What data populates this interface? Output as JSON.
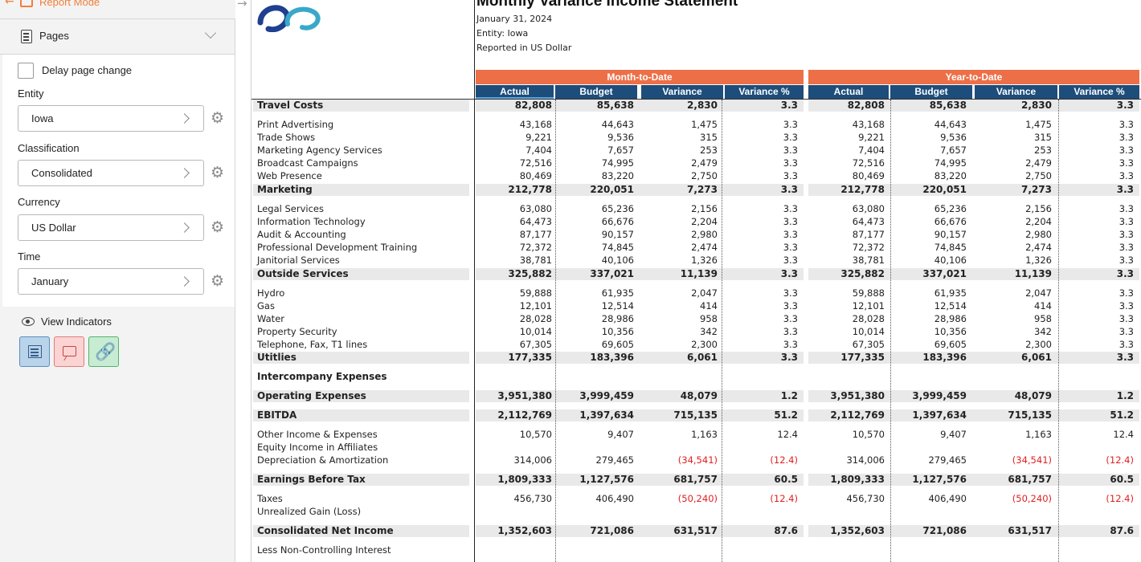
{
  "topbar": {
    "report_mode_label": "Report Mode"
  },
  "sidebar": {
    "pages_label": "Pages",
    "delay_label": "Delay page change",
    "entity": {
      "label": "Entity",
      "value": "Iowa"
    },
    "classification": {
      "label": "Classification",
      "value": "Consolidated"
    },
    "currency": {
      "label": "Currency",
      "value": "US Dollar"
    },
    "time": {
      "label": "Time",
      "value": "January"
    },
    "view_indicators_label": "View Indicators"
  },
  "report": {
    "title": "Monthly Variance Income Statement",
    "date": "January 31, 2024",
    "entity_line": "Entity: Iowa",
    "currency_line": "Reported in US Dollar",
    "groups": [
      "Month-to-Date",
      "Year-to-Date"
    ],
    "columns": [
      "Actual",
      "Budget",
      "Variance",
      "Variance %",
      "Actual",
      "Budget",
      "Variance",
      "Variance %"
    ],
    "rows": [
      {
        "label": "Travel Costs",
        "bold": true,
        "values": [
          "82,808",
          "85,638",
          "2,830",
          "3.3",
          "82,808",
          "85,638",
          "2,830",
          "3.3"
        ]
      },
      {
        "label": "Print Advertising",
        "values": [
          "43,168",
          "44,643",
          "1,475",
          "3.3",
          "43,168",
          "44,643",
          "1,475",
          "3.3"
        ]
      },
      {
        "label": "Trade Shows",
        "values": [
          "9,221",
          "9,536",
          "315",
          "3.3",
          "9,221",
          "9,536",
          "315",
          "3.3"
        ]
      },
      {
        "label": "Marketing Agency Services",
        "values": [
          "7,404",
          "7,657",
          "253",
          "3.3",
          "7,404",
          "7,657",
          "253",
          "3.3"
        ]
      },
      {
        "label": "Broadcast Campaigns",
        "values": [
          "72,516",
          "74,995",
          "2,479",
          "3.3",
          "72,516",
          "74,995",
          "2,479",
          "3.3"
        ]
      },
      {
        "label": "Web Presence",
        "values": [
          "80,469",
          "83,220",
          "2,750",
          "3.3",
          "80,469",
          "83,220",
          "2,750",
          "3.3"
        ]
      },
      {
        "label": "Marketing",
        "bold": true,
        "values": [
          "212,778",
          "220,051",
          "7,273",
          "3.3",
          "212,778",
          "220,051",
          "7,273",
          "3.3"
        ]
      },
      {
        "label": "Legal Services",
        "values": [
          "63,080",
          "65,236",
          "2,156",
          "3.3",
          "63,080",
          "65,236",
          "2,156",
          "3.3"
        ]
      },
      {
        "label": "Information Technology",
        "values": [
          "64,473",
          "66,676",
          "2,204",
          "3.3",
          "64,473",
          "66,676",
          "2,204",
          "3.3"
        ]
      },
      {
        "label": "Audit & Accounting",
        "values": [
          "87,177",
          "90,157",
          "2,980",
          "3.3",
          "87,177",
          "90,157",
          "2,980",
          "3.3"
        ]
      },
      {
        "label": "Professional Development Training",
        "values": [
          "72,372",
          "74,845",
          "2,474",
          "3.3",
          "72,372",
          "74,845",
          "2,474",
          "3.3"
        ]
      },
      {
        "label": "Janitorial Services",
        "values": [
          "38,781",
          "40,106",
          "1,326",
          "3.3",
          "38,781",
          "40,106",
          "1,326",
          "3.3"
        ]
      },
      {
        "label": "Outside Services",
        "bold": true,
        "values": [
          "325,882",
          "337,021",
          "11,139",
          "3.3",
          "325,882",
          "337,021",
          "11,139",
          "3.3"
        ]
      },
      {
        "label": "Hydro",
        "values": [
          "59,888",
          "61,935",
          "2,047",
          "3.3",
          "59,888",
          "61,935",
          "2,047",
          "3.3"
        ]
      },
      {
        "label": "Gas",
        "values": [
          "12,101",
          "12,514",
          "414",
          "3.3",
          "12,101",
          "12,514",
          "414",
          "3.3"
        ]
      },
      {
        "label": "Water",
        "values": [
          "28,028",
          "28,986",
          "958",
          "3.3",
          "28,028",
          "28,986",
          "958",
          "3.3"
        ]
      },
      {
        "label": "Property Security",
        "values": [
          "10,014",
          "10,356",
          "342",
          "3.3",
          "10,014",
          "10,356",
          "342",
          "3.3"
        ]
      },
      {
        "label": "Telephone, Fax, T1 lines",
        "values": [
          "67,305",
          "69,605",
          "2,300",
          "3.3",
          "67,305",
          "69,605",
          "2,300",
          "3.3"
        ]
      },
      {
        "label": "Utitlies",
        "bold": true,
        "values": [
          "177,335",
          "183,396",
          "6,061",
          "3.3",
          "177,335",
          "183,396",
          "6,061",
          "3.3"
        ]
      },
      {
        "label": "Intercompany Expenses",
        "bold": true,
        "values": [
          "",
          "",
          "",
          "",
          "",
          "",
          "",
          ""
        ]
      },
      {
        "label": "Operating Expenses",
        "bold": true,
        "values": [
          "3,951,380",
          "3,999,459",
          "48,079",
          "1.2",
          "3,951,380",
          "3,999,459",
          "48,079",
          "1.2"
        ]
      },
      {
        "label": "EBITDA",
        "bold": true,
        "values": [
          "2,112,769",
          "1,397,634",
          "715,135",
          "51.2",
          "2,112,769",
          "1,397,634",
          "715,135",
          "51.2"
        ]
      },
      {
        "label": "Other Income & Expenses",
        "values": [
          "10,570",
          "9,407",
          "1,163",
          "12.4",
          "10,570",
          "9,407",
          "1,163",
          "12.4"
        ]
      },
      {
        "label": "Equity Income in Affiliates",
        "values": [
          "",
          "",
          "",
          "",
          "",
          "",
          "",
          ""
        ]
      },
      {
        "label": "Depreciation & Amortization",
        "values": [
          "314,006",
          "279,465",
          "(34,541)",
          "(12.4)",
          "314,006",
          "279,465",
          "(34,541)",
          "(12.4)"
        ]
      },
      {
        "label": "Earnings Before Tax",
        "bold": true,
        "values": [
          "1,809,333",
          "1,127,576",
          "681,757",
          "60.5",
          "1,809,333",
          "1,127,576",
          "681,757",
          "60.5"
        ]
      },
      {
        "label": "Taxes",
        "values": [
          "456,730",
          "406,490",
          "(50,240)",
          "(12.4)",
          "456,730",
          "406,490",
          "(50,240)",
          "(12.4)"
        ]
      },
      {
        "label": "Unrealized Gain (Loss)",
        "values": [
          "",
          "",
          "",
          "",
          "",
          "",
          "",
          ""
        ]
      },
      {
        "label": "Consolidated Net Income",
        "bold": true,
        "values": [
          "1,352,603",
          "721,086",
          "631,517",
          "87.6",
          "1,352,603",
          "721,086",
          "631,517",
          "87.6"
        ]
      },
      {
        "label": "Less Non-Controlling Interest",
        "values": [
          "",
          "",
          "",
          "",
          "",
          "",
          "",
          ""
        ]
      }
    ]
  },
  "colors": {
    "accent": "#f07f3c",
    "group_header": "#ed6f47",
    "col_header": "#1d4d7a",
    "negative": "#e02020"
  },
  "icons": [
    "back-arrow-icon",
    "report-mode-icon",
    "pages-icon",
    "chevron-down-icon",
    "chevron-right-icon",
    "gear-icon",
    "eye-icon",
    "document-icon",
    "comment-icon",
    "link-icon"
  ]
}
